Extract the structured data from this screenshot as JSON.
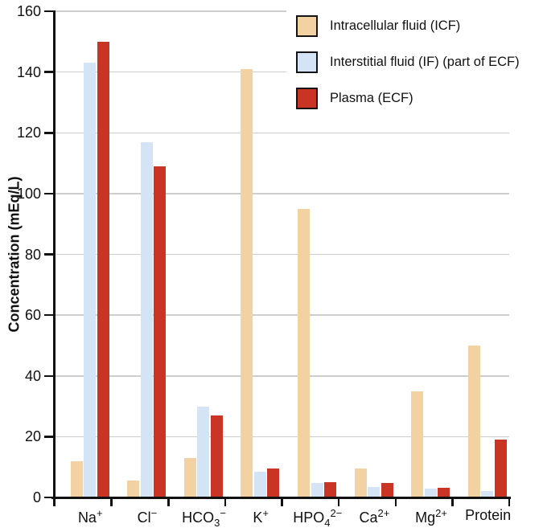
{
  "chart_data": {
    "type": "bar",
    "title": "",
    "xlabel": "",
    "ylabel": "Concentration (mEq/L)",
    "ylim": [
      0,
      160
    ],
    "yticks": [
      0,
      20,
      40,
      60,
      80,
      100,
      120,
      140,
      160
    ],
    "grid": "horizontal",
    "legend_position": "top-right",
    "axis_color": "#111111",
    "gridline_color": "#cdcdcd",
    "categories": [
      "Na+",
      "Cl-",
      "HCO3-",
      "K+",
      "HPO4 2-",
      "Ca2+",
      "Mg2+",
      "Protein"
    ],
    "category_labels_rich": [
      {
        "base": "Na",
        "sub": "",
        "sup": "+"
      },
      {
        "base": "Cl",
        "sub": "",
        "sup": "−"
      },
      {
        "base": "HCO",
        "sub": "3",
        "sup": "−"
      },
      {
        "base": "K",
        "sub": "",
        "sup": "+"
      },
      {
        "base": "HPO",
        "sub": "4",
        "sup": "2−"
      },
      {
        "base": "Ca",
        "sub": "",
        "sup": "2+"
      },
      {
        "base": "Mg",
        "sub": "",
        "sup": "2+"
      },
      {
        "base": "Protein",
        "sub": "",
        "sup": ""
      }
    ],
    "series": [
      {
        "name": "Intracellular fluid (ICF)",
        "color": "#F2D1A3",
        "values": [
          12,
          5.5,
          13,
          141,
          95,
          9.5,
          35,
          50
        ]
      },
      {
        "name": "Interstitial fluid (IF) (part of ECF)",
        "color": "#D4E3F5",
        "values": [
          143,
          117,
          30,
          8.5,
          4.7,
          3.5,
          3,
          2
        ]
      },
      {
        "name": "Plasma (ECF)",
        "color": "#CA3425",
        "values": [
          150,
          109,
          27,
          9.5,
          5,
          4.8,
          3.3,
          19
        ]
      }
    ]
  }
}
